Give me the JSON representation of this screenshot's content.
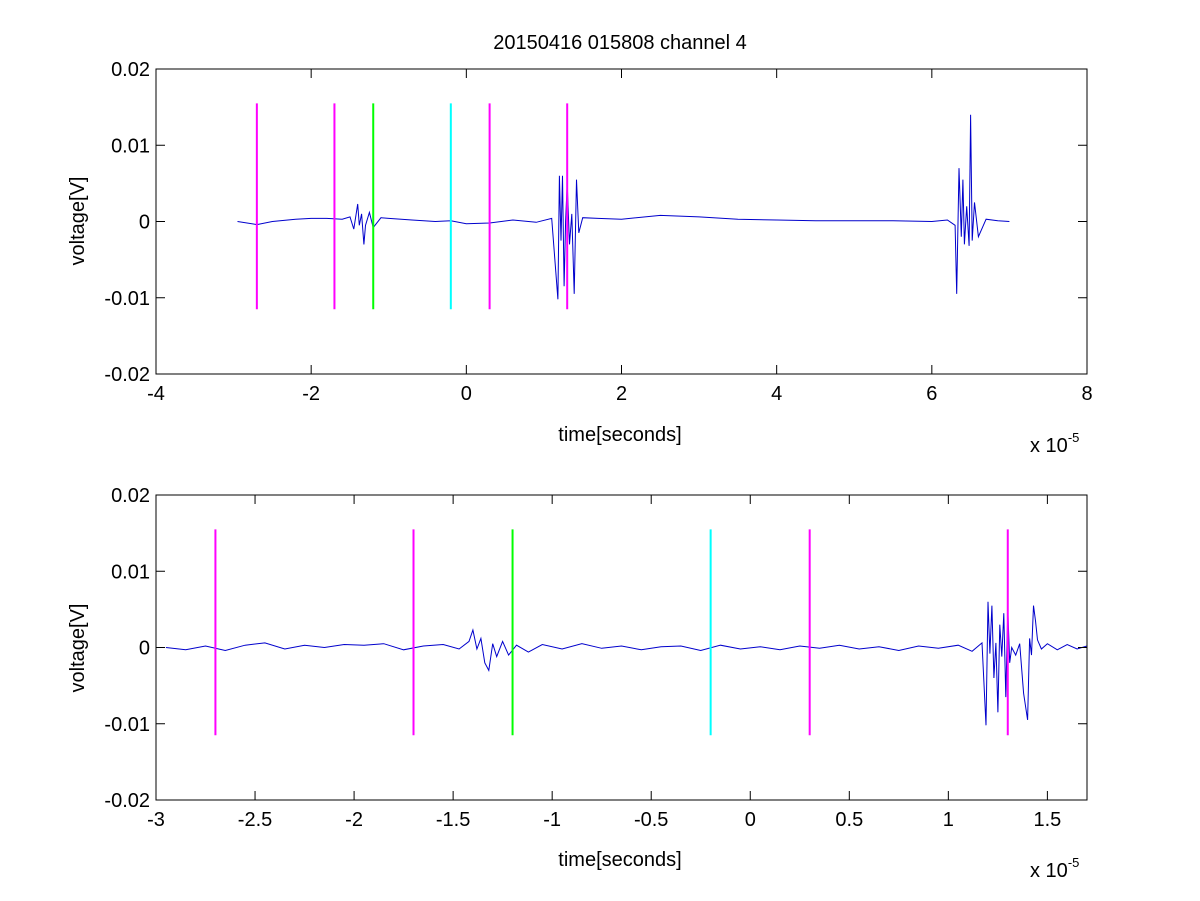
{
  "figure_title": "20150416 015808 channel 4",
  "chart_data": [
    {
      "type": "line",
      "title": "20150416 015808 channel 4",
      "xlabel": "time[seconds]",
      "ylabel": "voltage[V]",
      "x_multiplier_label": "x 10",
      "x_multiplier_exponent": "-5",
      "xlim": [
        -4,
        8
      ],
      "ylim": [
        -0.02,
        0.02
      ],
      "xticks": [
        -4,
        -2,
        0,
        2,
        4,
        6,
        8
      ],
      "xtick_labels": [
        "-4",
        "-2",
        "0",
        "2",
        "4",
        "6",
        "8"
      ],
      "yticks": [
        -0.02,
        -0.01,
        0,
        0.01,
        0.02
      ],
      "ytick_labels": [
        "-0.02",
        "-0.01",
        "0",
        "0.01",
        "0.02"
      ],
      "grid": false,
      "series": [
        {
          "color": "#0000cc",
          "x": [
            -2.95,
            -2.7,
            -2.5,
            -2.2,
            -2.0,
            -1.8,
            -1.6,
            -1.5,
            -1.45,
            -1.4,
            -1.38,
            -1.35,
            -1.32,
            -1.3,
            -1.25,
            -1.2,
            -1.1,
            -1.0,
            -0.7,
            -0.4,
            -0.2,
            0.0,
            0.3,
            0.6,
            0.9,
            1.1,
            1.18,
            1.2,
            1.22,
            1.24,
            1.26,
            1.28,
            1.3,
            1.33,
            1.36,
            1.39,
            1.42,
            1.45,
            1.5,
            1.7,
            2.0,
            2.5,
            3.0,
            3.5,
            4.0,
            4.5,
            5.0,
            5.5,
            6.0,
            6.2,
            6.3,
            6.32,
            6.35,
            6.38,
            6.4,
            6.42,
            6.45,
            6.48,
            6.5,
            6.52,
            6.55,
            6.6,
            6.7,
            6.85,
            7.0
          ],
          "y": [
            0.0,
            -0.0004,
            0.0,
            0.0003,
            0.0004,
            0.0004,
            0.0003,
            0.0006,
            -0.001,
            0.0023,
            -0.0005,
            0.001,
            -0.003,
            -0.0005,
            0.0012,
            -0.0008,
            0.0005,
            0.0004,
            0.0002,
            0.0,
            0.0001,
            -0.0003,
            -0.0002,
            0.0002,
            -0.0001,
            0.0004,
            -0.0102,
            0.006,
            -0.0025,
            0.006,
            -0.0085,
            0.0,
            0.005,
            -0.003,
            0.001,
            -0.0095,
            0.0055,
            -0.0015,
            0.0005,
            0.0004,
            0.0003,
            0.0008,
            0.0006,
            0.0003,
            0.0002,
            0.0001,
            0.0001,
            0.0001,
            0.0,
            0.0002,
            -0.0005,
            -0.0095,
            0.007,
            -0.002,
            0.0055,
            -0.003,
            0.002,
            -0.0032,
            0.014,
            -0.0025,
            0.0025,
            -0.002,
            0.0003,
            0.0001,
            0.0
          ]
        }
      ],
      "vertical_markers": [
        {
          "x": -2.7,
          "y_range": [
            -0.0115,
            0.0155
          ],
          "color": "#ff00ff"
        },
        {
          "x": -1.7,
          "y_range": [
            -0.0115,
            0.0155
          ],
          "color": "#ff00ff"
        },
        {
          "x": -1.2,
          "y_range": [
            -0.0115,
            0.0155
          ],
          "color": "#00ff00"
        },
        {
          "x": -0.2,
          "y_range": [
            -0.0115,
            0.0155
          ],
          "color": "#00ffff"
        },
        {
          "x": 0.3,
          "y_range": [
            -0.0115,
            0.0155
          ],
          "color": "#ff00ff"
        },
        {
          "x": 1.3,
          "y_range": [
            -0.0115,
            0.0155
          ],
          "color": "#ff00ff"
        }
      ]
    },
    {
      "type": "line",
      "title": "",
      "xlabel": "time[seconds]",
      "ylabel": "voltage[V]",
      "x_multiplier_label": "x 10",
      "x_multiplier_exponent": "-5",
      "xlim": [
        -3.0,
        1.7
      ],
      "ylim": [
        -0.02,
        0.02
      ],
      "xticks": [
        -3,
        -2.5,
        -2,
        -1.5,
        -1,
        -0.5,
        0,
        0.5,
        1,
        1.5
      ],
      "xtick_labels": [
        "-3",
        "-2.5",
        "-2",
        "-1.5",
        "-1",
        "-0.5",
        "0",
        "0.5",
        "1",
        "1.5"
      ],
      "yticks": [
        -0.02,
        -0.01,
        0,
        0.01,
        0.02
      ],
      "ytick_labels": [
        "-0.02",
        "-0.01",
        "0",
        "0.01",
        "0.02"
      ],
      "grid": false,
      "series": [
        {
          "color": "#0000cc",
          "x": [
            -2.95,
            -2.85,
            -2.75,
            -2.65,
            -2.55,
            -2.45,
            -2.35,
            -2.25,
            -2.15,
            -2.05,
            -1.95,
            -1.85,
            -1.75,
            -1.65,
            -1.55,
            -1.47,
            -1.42,
            -1.4,
            -1.38,
            -1.36,
            -1.34,
            -1.32,
            -1.3,
            -1.28,
            -1.25,
            -1.22,
            -1.18,
            -1.12,
            -1.05,
            -0.95,
            -0.85,
            -0.75,
            -0.65,
            -0.55,
            -0.45,
            -0.35,
            -0.25,
            -0.15,
            -0.05,
            0.05,
            0.15,
            0.25,
            0.35,
            0.45,
            0.55,
            0.65,
            0.75,
            0.85,
            0.95,
            1.05,
            1.12,
            1.17,
            1.19,
            1.2,
            1.21,
            1.22,
            1.23,
            1.24,
            1.25,
            1.26,
            1.27,
            1.28,
            1.29,
            1.3,
            1.31,
            1.32,
            1.34,
            1.36,
            1.38,
            1.4,
            1.41,
            1.42,
            1.43,
            1.44,
            1.45,
            1.47,
            1.5,
            1.55,
            1.6,
            1.65,
            1.7
          ],
          "y": [
            0.0,
            -0.0003,
            0.0002,
            -0.0004,
            0.0003,
            0.0006,
            -0.0002,
            0.0003,
            0.0,
            0.0004,
            0.0003,
            0.0005,
            -0.0003,
            0.0002,
            0.0004,
            -0.0002,
            0.0008,
            0.0023,
            -0.0002,
            0.0012,
            -0.002,
            -0.003,
            0.0005,
            -0.0012,
            0.0008,
            -0.001,
            0.0003,
            -0.0006,
            0.0004,
            -0.0002,
            0.0005,
            -0.0001,
            0.0002,
            -0.0003,
            0.0001,
            0.0002,
            -0.0004,
            0.0003,
            -0.0002,
            0.0001,
            -0.0003,
            0.0002,
            -0.0001,
            0.0003,
            -0.0002,
            0.0001,
            -0.0004,
            0.0002,
            -0.0001,
            0.0003,
            -0.0005,
            0.0006,
            -0.0102,
            0.006,
            -0.0008,
            0.0055,
            -0.004,
            0.0006,
            -0.0085,
            0.003,
            -0.0012,
            0.0045,
            -0.0065,
            0.005,
            -0.002,
            0.0,
            -0.001,
            0.0005,
            -0.006,
            -0.0095,
            0.0012,
            -0.001,
            0.0055,
            0.0035,
            0.001,
            -0.0002,
            0.0005,
            -0.0003,
            0.0004,
            -0.0002,
            0.0002
          ]
        }
      ],
      "vertical_markers": [
        {
          "x": -2.7,
          "y_range": [
            -0.0115,
            0.0155
          ],
          "color": "#ff00ff"
        },
        {
          "x": -1.7,
          "y_range": [
            -0.0115,
            0.0155
          ],
          "color": "#ff00ff"
        },
        {
          "x": -1.2,
          "y_range": [
            -0.0115,
            0.0155
          ],
          "color": "#00ff00"
        },
        {
          "x": -0.2,
          "y_range": [
            -0.0115,
            0.0155
          ],
          "color": "#00ffff"
        },
        {
          "x": 0.3,
          "y_range": [
            -0.0115,
            0.0155
          ],
          "color": "#ff00ff"
        },
        {
          "x": 1.3,
          "y_range": [
            -0.0115,
            0.0155
          ],
          "color": "#ff00ff"
        }
      ]
    }
  ]
}
